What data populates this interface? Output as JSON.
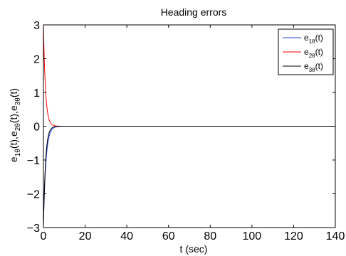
{
  "chart_data": {
    "type": "line",
    "title": "Heading errors",
    "xlabel": "t (sec)",
    "ylabel": {
      "parts": [
        {
          "t": "e",
          "sub": false
        },
        {
          "t": "1θ",
          "sub": true
        },
        {
          "t": "(t),e",
          "sub": false
        },
        {
          "t": "2θ",
          "sub": true
        },
        {
          "t": "(t),e",
          "sub": false
        },
        {
          "t": "3θ",
          "sub": true
        },
        {
          "t": "(t)",
          "sub": false
        }
      ]
    },
    "xlim": [
      0,
      140
    ],
    "ylim": [
      -3,
      3
    ],
    "xticks": [
      0,
      20,
      40,
      60,
      80,
      100,
      120,
      140
    ],
    "yticks": [
      -3,
      -2,
      -1,
      0,
      1,
      2,
      3
    ],
    "grid": false,
    "legend_position": "top-right",
    "series": [
      {
        "base": "e",
        "sub": "1θ",
        "tail": "(t)",
        "color": "#1f3fd9",
        "y0": -2.9,
        "tau": 1.2
      },
      {
        "base": "e",
        "sub": "2θ",
        "tail": "(t)",
        "color": "#ff0000",
        "y0": 3.0,
        "tau": 1.0
      },
      {
        "base": "e",
        "sub": "3θ",
        "tail": "(t)",
        "color": "#000000",
        "y0": -3.0,
        "tau": 1.0
      }
    ]
  }
}
